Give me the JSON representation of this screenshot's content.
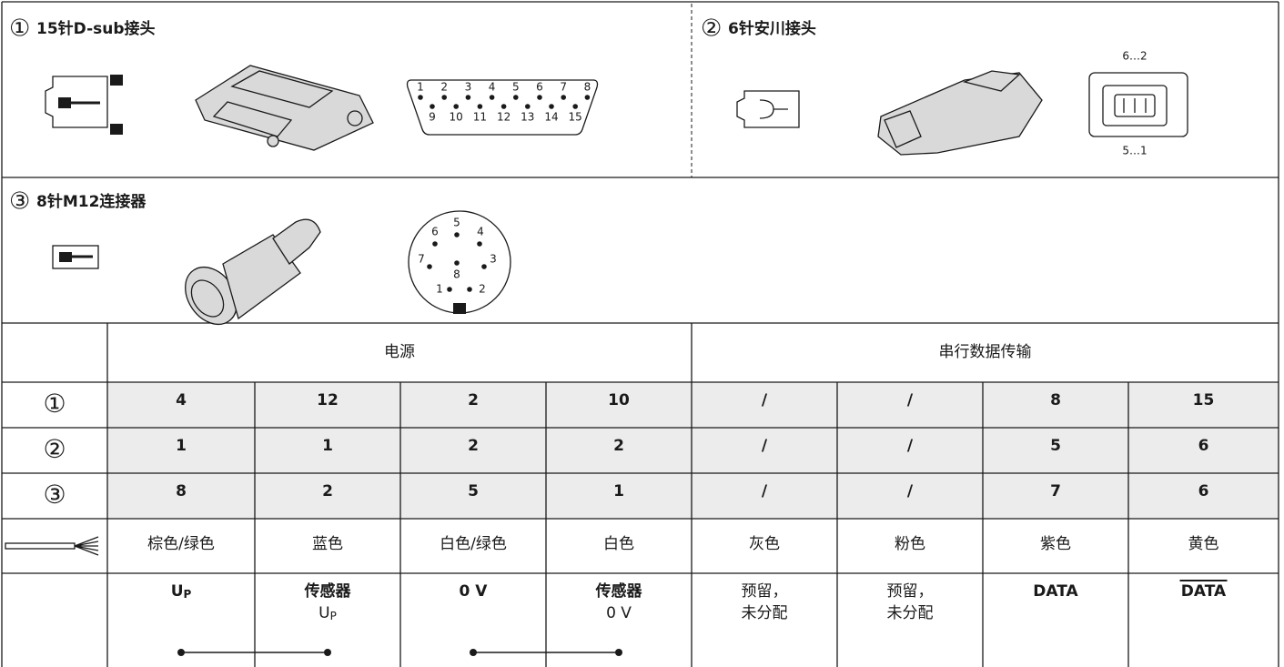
{
  "connectors": [
    {
      "number": "①",
      "title": "15针D-sub接头",
      "pins_top": [
        "1",
        "2",
        "3",
        "4",
        "5",
        "6",
        "7",
        "8"
      ],
      "pins_bottom": [
        "9",
        "10",
        "11",
        "12",
        "13",
        "14",
        "15"
      ]
    },
    {
      "number": "②",
      "title": "6针安川接头",
      "pin_labels": [
        "6…2",
        "5…1"
      ]
    },
    {
      "number": "③",
      "title": "8针M12连接器",
      "pins": [
        "1",
        "2",
        "3",
        "4",
        "5",
        "6",
        "7",
        "8"
      ]
    }
  ],
  "table": {
    "groups": [
      "电源",
      "串行数据传输"
    ],
    "rows": [
      {
        "label": "①",
        "cells": [
          "4",
          "12",
          "2",
          "10",
          "/",
          "/",
          "8",
          "15"
        ]
      },
      {
        "label": "②",
        "cells": [
          "1",
          "1",
          "2",
          "2",
          "/",
          "/",
          "5",
          "6"
        ]
      },
      {
        "label": "③",
        "cells": [
          "8",
          "2",
          "5",
          "1",
          "/",
          "/",
          "7",
          "6"
        ]
      }
    ],
    "colors": [
      "棕色/绿色",
      "蓝色",
      "白色/绿色",
      "白色",
      "灰色",
      "粉色",
      "紫色",
      "黄色"
    ],
    "signals": [
      {
        "bold": "U",
        "sub": "P"
      },
      {
        "bold": "传感器",
        "text": "U",
        "sub": "P"
      },
      {
        "bold": "0 V"
      },
      {
        "bold": "传感器",
        "text": "0 V"
      },
      {
        "text": "预留，",
        "text2": "未分配"
      },
      {
        "text": "预留，",
        "text2": "未分配"
      },
      {
        "bold": "DATA"
      },
      {
        "bold": "DATA",
        "overline": true
      }
    ]
  }
}
